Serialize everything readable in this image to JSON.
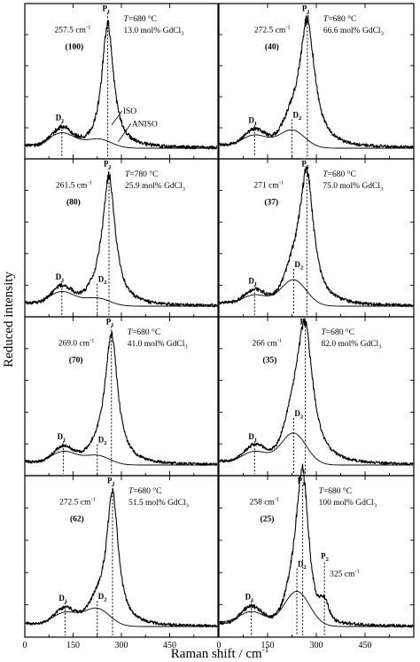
{
  "figure": {
    "ylabel": "Reduced intensity",
    "xlabel_main": "Raman shift / cm",
    "xlabel_sup": "-1",
    "legend": {
      "iso": "ISO",
      "aniso": "ANISO"
    }
  },
  "chart_data": [
    {
      "type": "line",
      "panel": "left-1",
      "temperature": "680",
      "composition": "13.0",
      "p1_shift": "257.5",
      "p1_unit": "cm",
      "fwhm": "(100)",
      "peaks": {
        "D1": 115,
        "P1": 257.5
      },
      "p1_width": 22,
      "d1_height": 0.14,
      "d2": null,
      "d2_height": 0.07,
      "noise": 0.035
    },
    {
      "type": "line",
      "panel": "right-1",
      "temperature": "680",
      "composition": "66.6",
      "p1_shift": "272.5",
      "p1_unit": "cm",
      "fwhm": "(40)",
      "peaks": {
        "D1": 110,
        "D2": 225,
        "P1": 272.5
      },
      "p1_width": 28,
      "d1_height": 0.12,
      "d2_height": 0.14,
      "noise": 0.03
    },
    {
      "type": "line",
      "panel": "left-2",
      "temperature": "780",
      "composition": "25.9",
      "p1_shift": "261.5",
      "p1_unit": "cm",
      "fwhm": "(80)",
      "peaks": {
        "D1": 115,
        "D2": 225,
        "P1": 261.5
      },
      "p1_width": 24,
      "d1_height": 0.13,
      "d2_height": 0.06,
      "noise": 0.03
    },
    {
      "type": "line",
      "panel": "right-2",
      "temperature": "680",
      "composition": "75.0",
      "p1_shift": "271",
      "p1_unit": "cm",
      "fwhm": "(37)",
      "peaks": {
        "D1": 110,
        "D2": 230,
        "P1": 271
      },
      "p1_width": 26,
      "d1_height": 0.1,
      "d2_height": 0.2,
      "noise": 0.03
    },
    {
      "type": "line",
      "panel": "left-3",
      "temperature": "680",
      "composition": "41.0",
      "p1_shift": "269.0",
      "p1_unit": "cm",
      "fwhm": "(70)",
      "peaks": {
        "D1": 120,
        "D2": 225,
        "P1": 269
      },
      "p1_width": 24,
      "d1_height": 0.12,
      "d2_height": 0.07,
      "noise": 0.025
    },
    {
      "type": "line",
      "panel": "right-3",
      "temperature": "680",
      "composition": "82.0",
      "p1_shift": "266",
      "p1_unit": "cm",
      "fwhm": "(35)",
      "peaks": {
        "D1": 110,
        "D2": 230,
        "P1": 266
      },
      "p1_width": 30,
      "d1_height": 0.12,
      "d2_height": 0.24,
      "noise": 0.025
    },
    {
      "type": "line",
      "panel": "left-4",
      "temperature": "680",
      "composition": "51.5",
      "p1_shift": "272.5",
      "p1_unit": "cm",
      "fwhm": "(62)",
      "peaks": {
        "D1": 125,
        "D2": 225,
        "P1": 272.5
      },
      "p1_width": 22,
      "d1_height": 0.12,
      "d2_height": 0.13,
      "noise": 0.025
    },
    {
      "type": "line",
      "panel": "right-4",
      "temperature": "680",
      "composition": "100",
      "p1_shift": "258",
      "p1_unit": "cm",
      "fwhm": "(25)",
      "p2_shift": "325",
      "p2_unit": "cm",
      "peaks": {
        "D1": 100,
        "D2": 240,
        "P1": 258,
        "P2": 325
      },
      "p1_width": 22,
      "d1_height": 0.13,
      "d2_height": 0.26,
      "noise": 0.03
    }
  ],
  "x_axis": {
    "range": [
      0,
      600
    ],
    "ticks": [
      0,
      150,
      300,
      450
    ],
    "tick_labels": [
      "0",
      "150",
      "300",
      "450"
    ]
  },
  "gdcl": "GdCl",
  "gdcl_sub": "3",
  "mol_unit": "mol%",
  "t_prefix": "T",
  "t_unit": "°C",
  "sup_minus": "-1"
}
